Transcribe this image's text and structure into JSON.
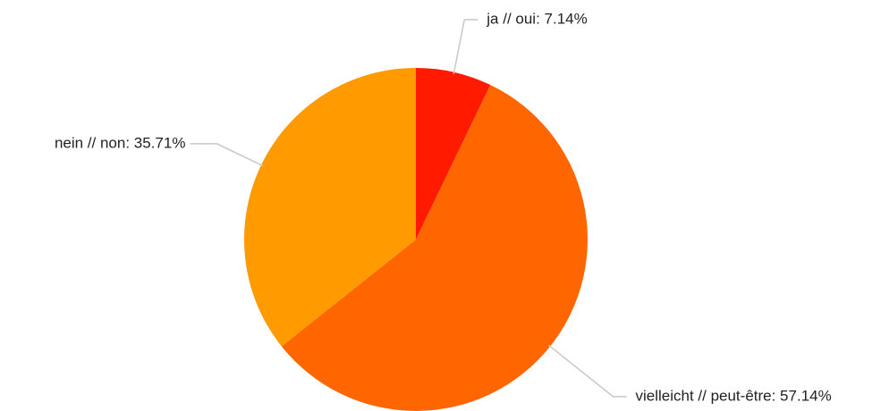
{
  "chart_data": {
    "type": "pie",
    "values": [
      7.14,
      57.14,
      35.71
    ],
    "value_labels": [
      "ja // oui: 7.14%",
      "vielleicht // peut-être: 57.14%",
      "nein // non: 35.71%"
    ],
    "colors": [
      "#ff1a00",
      "#ff6600",
      "#ff9a00"
    ]
  }
}
